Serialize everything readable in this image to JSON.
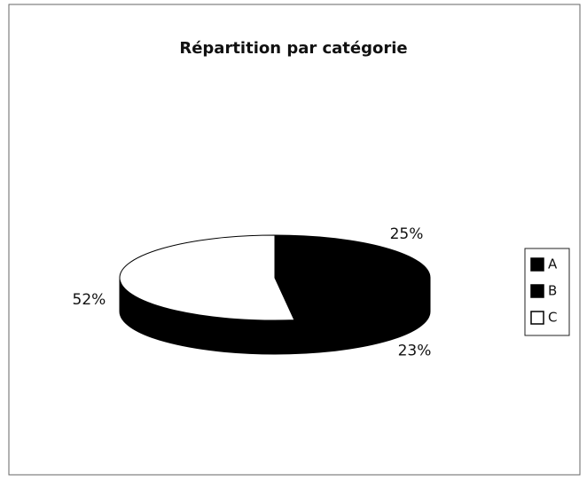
{
  "chart_data": {
    "type": "pie",
    "title": "Répartition par catégorie",
    "categories": [
      "A",
      "B",
      "C"
    ],
    "values": [
      25,
      23,
      52
    ],
    "value_labels": [
      "25%",
      "23%",
      "52%"
    ],
    "colors": [
      "#000000",
      "#000000",
      "#ffffff"
    ],
    "legend": "right"
  }
}
